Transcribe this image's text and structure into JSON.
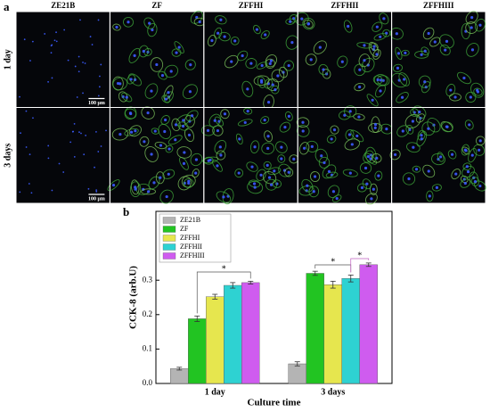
{
  "panel_a": {
    "label": "a",
    "columns": [
      "ZE21B",
      "ZF",
      "ZFFHI",
      "ZFFHII",
      "ZFFHIII"
    ],
    "rows": [
      "1 day",
      "3 days"
    ],
    "scale_bar": "100 μm"
  },
  "chart_data": {
    "type": "bar",
    "panel_label": "b",
    "x_label": "Culture time",
    "y_label": "CCK-8 (arb.U)",
    "categories": [
      "1 day",
      "3 days"
    ],
    "series": [
      {
        "name": "ZE21B",
        "color": "#b4b4b4",
        "values": [
          0.043,
          0.057
        ],
        "errors": [
          0.004,
          0.006
        ]
      },
      {
        "name": "ZF",
        "color": "#22c422",
        "values": [
          0.188,
          0.32
        ],
        "errors": [
          0.008,
          0.006
        ]
      },
      {
        "name": "ZFFHI",
        "color": "#e6e64e",
        "values": [
          0.252,
          0.287
        ],
        "errors": [
          0.007,
          0.01
        ]
      },
      {
        "name": "ZFFHII",
        "color": "#2ed2d2",
        "values": [
          0.285,
          0.305
        ],
        "errors": [
          0.008,
          0.01
        ]
      },
      {
        "name": "ZFFHIII",
        "color": "#cf5cef",
        "values": [
          0.293,
          0.345
        ],
        "errors": [
          0.004,
          0.005
        ]
      }
    ],
    "ylim": [
      0,
      0.5
    ],
    "yticks": [
      {
        "value": 0,
        "label": "0.0"
      },
      0.1,
      0.2,
      0.3
    ],
    "annotations": [
      "*",
      "*",
      "*"
    ],
    "legend": "upper left"
  }
}
